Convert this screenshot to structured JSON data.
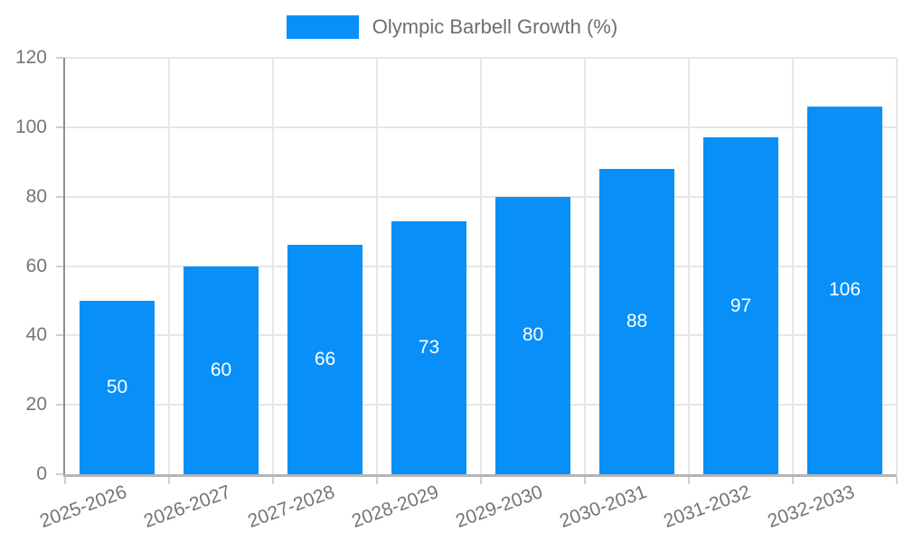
{
  "legend": {
    "series_label": "Olympic Barbell Growth (%)"
  },
  "chart_data": {
    "type": "bar",
    "title": "Olympic Barbell Growth (%)",
    "categories": [
      "2025-2026",
      "2026-2027",
      "2027-2028",
      "2028-2029",
      "2029-2030",
      "2030-2031",
      "2031-2032",
      "2032-2033"
    ],
    "values": [
      50,
      60,
      66,
      73,
      80,
      88,
      97,
      106
    ],
    "xlabel": "",
    "ylabel": "",
    "ylim": [
      0,
      120
    ],
    "yticks": [
      0,
      20,
      40,
      60,
      80,
      100,
      120
    ],
    "grid": true,
    "legend_position": "top",
    "value_labels": true,
    "x_label_rotation_deg": -20,
    "colors": {
      "bar": "#0890F8",
      "grid": "#e7e7e7",
      "axis_y": "#8f8f8f",
      "axis_x": "#b5b5b5",
      "tick": "#d0d0d0",
      "tick_label": "#757575",
      "legend_text": "#6e6e6e",
      "value_label": "#ffffff",
      "background": "#ffffff"
    }
  }
}
